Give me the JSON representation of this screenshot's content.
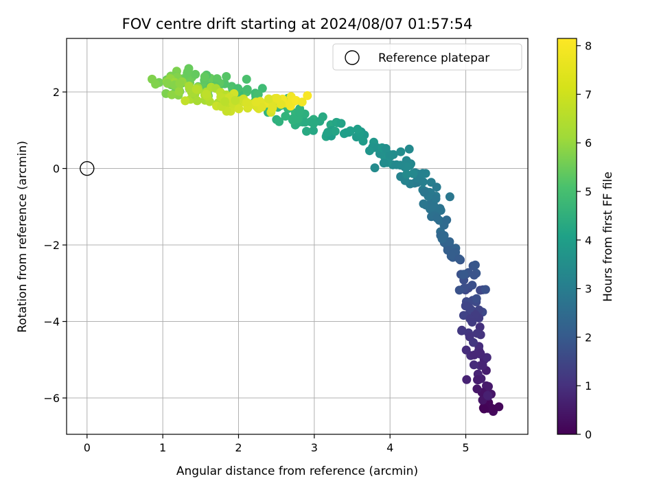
{
  "chart_data": {
    "type": "scatter",
    "title": "FOV centre drift starting at 2024/08/07 01:57:54",
    "xlabel": "Angular distance from reference (arcmin)",
    "ylabel": "Rotation from reference (arcmin)",
    "xlim": [
      -0.27,
      5.82
    ],
    "ylim": [
      -6.95,
      3.4
    ],
    "xticks": [
      0,
      1,
      2,
      3,
      4,
      5
    ],
    "yticks": [
      -6,
      -4,
      -2,
      0,
      2
    ],
    "xtick_labels": [
      "0",
      "1",
      "2",
      "3",
      "4",
      "5"
    ],
    "ytick_labels": [
      "−6",
      "−4",
      "−2",
      "0",
      "2"
    ],
    "grid": true,
    "legend": {
      "placement": "top-right",
      "entries": [
        "Reference platepar"
      ]
    },
    "reference_point": {
      "x": 0,
      "y": 0,
      "label": "Reference platepar"
    },
    "colorbar": {
      "label": "Hours from first FF file",
      "colormap": "viridis",
      "range": [
        0,
        8.15
      ],
      "ticks": [
        0,
        1,
        2,
        3,
        4,
        5,
        6,
        7,
        8
      ],
      "tick_labels": [
        "0",
        "1",
        "2",
        "3",
        "4",
        "5",
        "6",
        "7",
        "8"
      ]
    },
    "trajectory_segments": [
      {
        "h0": 0.0,
        "h1": 0.6,
        "x0": 5.3,
        "x1": 5.2,
        "y0": -6.3,
        "y1": -5.7,
        "n": 18,
        "sx": 0.16,
        "sy": 0.25
      },
      {
        "h0": 0.6,
        "h1": 1.2,
        "x0": 5.2,
        "x1": 5.15,
        "y0": -5.7,
        "y1": -4.5,
        "n": 22,
        "sx": 0.14,
        "sy": 0.35
      },
      {
        "h0": 1.2,
        "h1": 1.9,
        "x0": 5.15,
        "x1": 5.05,
        "y0": -4.5,
        "y1": -3.2,
        "n": 26,
        "sx": 0.16,
        "sy": 0.3
      },
      {
        "h0": 1.9,
        "h1": 2.6,
        "x0": 5.05,
        "x1": 4.8,
        "y0": -3.2,
        "y1": -1.9,
        "n": 26,
        "sx": 0.15,
        "sy": 0.3
      },
      {
        "h0": 2.6,
        "h1": 3.2,
        "x0": 4.8,
        "x1": 4.55,
        "y0": -1.9,
        "y1": -0.8,
        "n": 22,
        "sx": 0.1,
        "sy": 0.25
      },
      {
        "h0": 3.2,
        "h1": 3.8,
        "x0": 4.55,
        "x1": 4.2,
        "y0": -0.8,
        "y1": 0.1,
        "n": 28,
        "sx": 0.14,
        "sy": 0.22
      },
      {
        "h0": 3.8,
        "h1": 4.5,
        "x0": 4.2,
        "x1": 3.5,
        "y0": 0.1,
        "y1": 0.9,
        "n": 32,
        "sx": 0.2,
        "sy": 0.28
      },
      {
        "h0": 4.5,
        "h1": 5.2,
        "x0": 3.5,
        "x1": 2.7,
        "y0": 0.9,
        "y1": 1.4,
        "n": 34,
        "sx": 0.2,
        "sy": 0.22
      },
      {
        "h0": 5.2,
        "h1": 5.9,
        "x0": 2.7,
        "x1": 1.8,
        "y0": 1.4,
        "y1": 2.2,
        "n": 36,
        "sx": 0.25,
        "sy": 0.25
      },
      {
        "h0": 5.9,
        "h1": 6.6,
        "x0": 1.8,
        "x1": 1.05,
        "y0": 2.2,
        "y1": 2.3,
        "n": 40,
        "sx": 0.25,
        "sy": 0.28
      },
      {
        "h0": 6.6,
        "h1": 7.2,
        "x0": 1.05,
        "x1": 1.5,
        "y0": 2.2,
        "y1": 1.9,
        "n": 34,
        "sx": 0.25,
        "sy": 0.28
      },
      {
        "h0": 7.2,
        "h1": 7.7,
        "x0": 1.5,
        "x1": 2.2,
        "y0": 1.9,
        "y1": 1.7,
        "n": 32,
        "sx": 0.22,
        "sy": 0.22
      },
      {
        "h0": 7.7,
        "h1": 8.1,
        "x0": 2.2,
        "x1": 2.8,
        "y0": 1.7,
        "y1": 1.8,
        "n": 30,
        "sx": 0.18,
        "sy": 0.18
      }
    ]
  }
}
